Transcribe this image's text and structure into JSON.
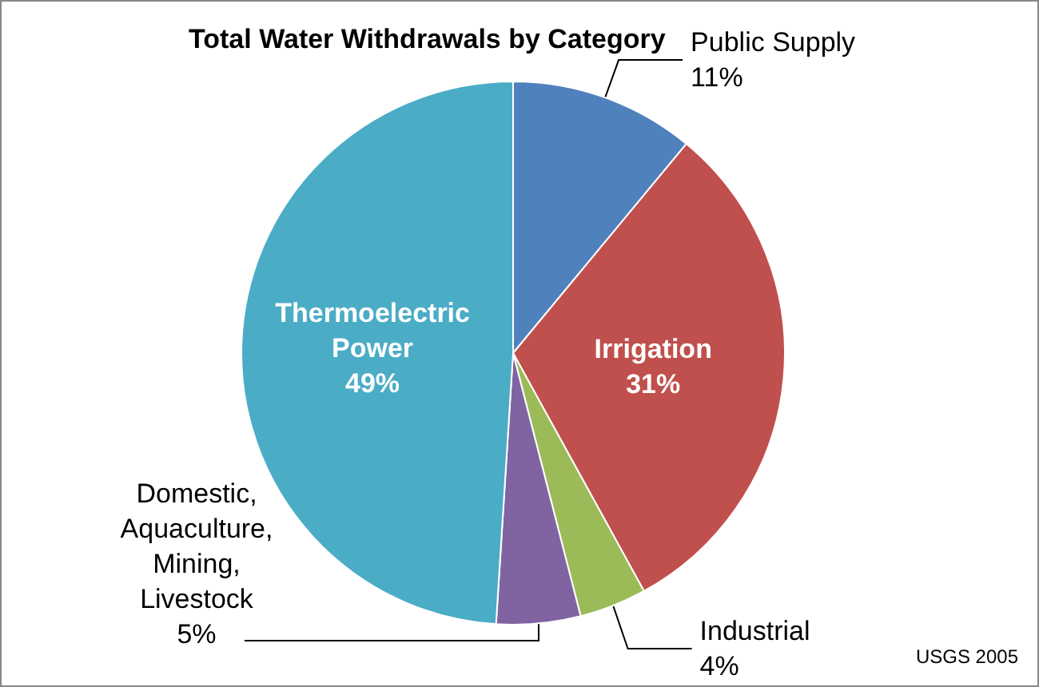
{
  "chart_data": {
    "type": "pie",
    "title": "Total Water Withdrawals by Category",
    "categories": [
      "Public Supply",
      "Irrigation",
      "Industrial",
      "Domestic,\nAquaculture,\nMining,\nLivestock",
      "Thermoelectric\nPower"
    ],
    "values": [
      11,
      31,
      4,
      5,
      49
    ],
    "value_labels": [
      "11%",
      "31%",
      "4%",
      "5%",
      "49%"
    ],
    "colors": [
      "#4f81bd",
      "#c0504d",
      "#9bbb59",
      "#8064a2",
      "#4bacc6"
    ],
    "annotations": [
      "USGS 2005"
    ],
    "legend": false
  }
}
